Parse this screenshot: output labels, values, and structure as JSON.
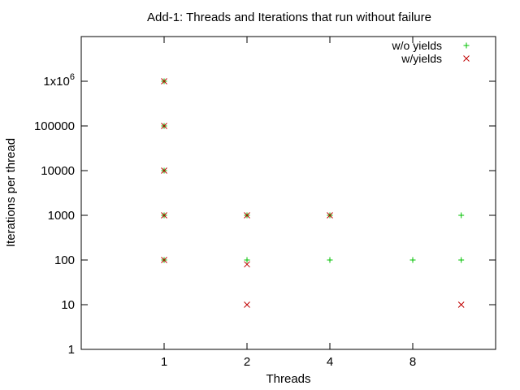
{
  "chart_data": {
    "type": "scatter",
    "title": "Add-1: Threads and Iterations that run without failure",
    "xlabel": "Threads",
    "ylabel": "Iterations per thread",
    "x_scale": "log2",
    "y_scale": "log10",
    "xlim": [
      0.5,
      16
    ],
    "ylim": [
      1,
      10000000
    ],
    "x_ticks": [
      {
        "value": 1,
        "label": "1"
      },
      {
        "value": 2,
        "label": "2"
      },
      {
        "value": 4,
        "label": "4"
      },
      {
        "value": 8,
        "label": "8"
      }
    ],
    "y_ticks": [
      {
        "value": 1,
        "label": "1"
      },
      {
        "value": 10,
        "label": "10"
      },
      {
        "value": 100,
        "label": "100"
      },
      {
        "value": 1000,
        "label": "1000"
      },
      {
        "value": 10000,
        "label": "10000"
      },
      {
        "value": 100000,
        "label": "100000"
      },
      {
        "value": 1000000,
        "label": "1x10",
        "sup": "6"
      }
    ],
    "grid": false,
    "legend_position": "top-right",
    "series": [
      {
        "name": "w/o yields",
        "marker": "plus",
        "color": "#00c000",
        "points": [
          {
            "x": 1,
            "y": 100
          },
          {
            "x": 1,
            "y": 1000
          },
          {
            "x": 1,
            "y": 10000
          },
          {
            "x": 1,
            "y": 100000
          },
          {
            "x": 1,
            "y": 1000000
          },
          {
            "x": 2,
            "y": 100
          },
          {
            "x": 2,
            "y": 1000
          },
          {
            "x": 4,
            "y": 100
          },
          {
            "x": 4,
            "y": 1000
          },
          {
            "x": 8,
            "y": 100
          },
          {
            "x": 12,
            "y": 100
          },
          {
            "x": 12,
            "y": 1000
          }
        ]
      },
      {
        "name": "w/yields",
        "marker": "cross",
        "color": "#c00000",
        "points": [
          {
            "x": 1,
            "y": 100
          },
          {
            "x": 1,
            "y": 1000
          },
          {
            "x": 1,
            "y": 10000
          },
          {
            "x": 1,
            "y": 100000
          },
          {
            "x": 1,
            "y": 1000000
          },
          {
            "x": 2,
            "y": 10
          },
          {
            "x": 2,
            "y": 80
          },
          {
            "x": 2,
            "y": 1000
          },
          {
            "x": 4,
            "y": 1000
          },
          {
            "x": 12,
            "y": 10
          }
        ]
      }
    ]
  }
}
